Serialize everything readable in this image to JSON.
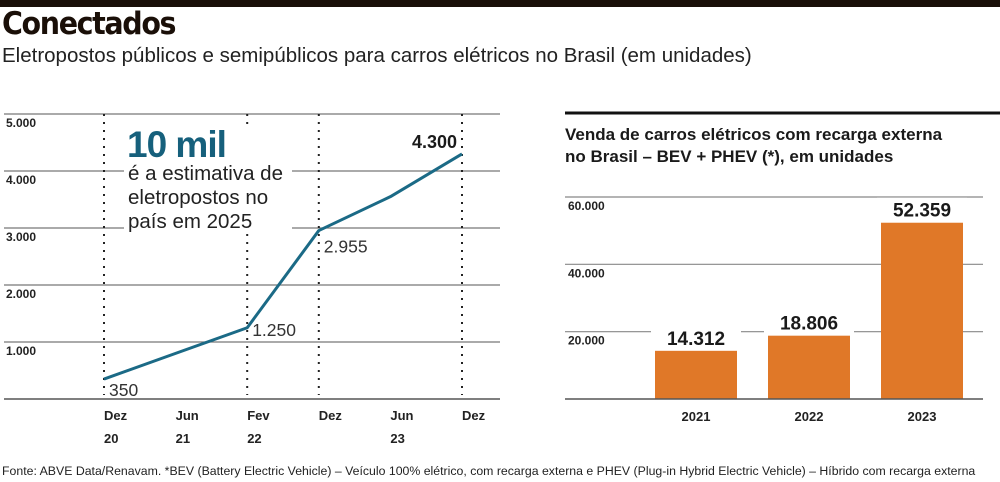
{
  "header": {
    "title": "Conectados",
    "subtitle": "Eletropostos públicos e semipúblicos para carros elétricos no Brasil (em unidades)"
  },
  "footer": "Fonte: ABVE Data/Renavam. *BEV (Battery Electric Vehicle) – Veículo 100% elétrico, com recarga externa e PHEV (Plug-in Hybrid Electric Vehicle) – Híbrido com recarga externa",
  "colors": {
    "line": "#1b6a86",
    "highlight": "#16607c",
    "bar": "#e07828",
    "grid": "#777777"
  },
  "chart_data": [
    {
      "type": "line",
      "title": "",
      "annotation": {
        "big": "10 mil",
        "lines": [
          "é a estimativa de",
          "eletropostos no",
          "país em 2025"
        ]
      },
      "x_labels": [
        [
          "Dez",
          "20"
        ],
        [
          "Jun",
          "21"
        ],
        [
          "Fev",
          "22"
        ],
        [
          "Dez",
          ""
        ],
        [
          "Jun",
          "23"
        ],
        [
          "Dez",
          ""
        ]
      ],
      "values": [
        350,
        800,
        1250,
        2955,
        3550,
        4300
      ],
      "data_labels": [
        {
          "index": 0,
          "text": "350"
        },
        {
          "index": 2,
          "text": "1.250"
        },
        {
          "index": 3,
          "text": "2.955"
        },
        {
          "index": 5,
          "text": "4.300",
          "bold": true
        }
      ],
      "dotted_at": [
        0,
        2,
        3,
        5
      ],
      "yticks": [
        {
          "v": 5000,
          "t": "5.000"
        },
        {
          "v": 4000,
          "t": "4.000"
        },
        {
          "v": 3000,
          "t": "3.000"
        },
        {
          "v": 2000,
          "t": "2.000"
        },
        {
          "v": 1000,
          "t": "1.000"
        }
      ],
      "ylim": [
        0,
        5000
      ],
      "grid": true
    },
    {
      "type": "bar",
      "title": [
        "Venda de carros elétricos com recarga externa",
        "no Brasil – BEV + PHEV (*), em unidades"
      ],
      "categories": [
        "2021",
        "2022",
        "2023"
      ],
      "values": [
        14312,
        18806,
        52359
      ],
      "value_labels": [
        "14.312",
        "18.806",
        "52.359"
      ],
      "yticks": [
        {
          "v": 60000,
          "t": "60.000"
        },
        {
          "v": 40000,
          "t": "40.000"
        },
        {
          "v": 20000,
          "t": "20.000"
        }
      ],
      "ylim": [
        0,
        60000
      ],
      "grid": true
    }
  ]
}
